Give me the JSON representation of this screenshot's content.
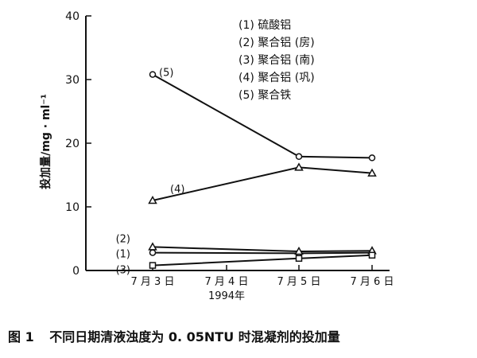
{
  "chart_data": {
    "type": "line",
    "ylabel": "投加量/mg · ml⁻¹",
    "ylim": [
      0,
      40
    ],
    "yticks": [
      0,
      10,
      20,
      30,
      40
    ],
    "x": [
      3,
      4,
      5,
      6
    ],
    "xticklabels": [
      "7 月 3 日",
      "7 月 4 日",
      "7 月 5 日",
      "7 月 6 日"
    ],
    "xsublabel": "1994年",
    "grid": false,
    "legend_position": "top-right",
    "series": [
      {
        "name": "(1) 硫酸铝",
        "tag": "(1)",
        "marker": "circle",
        "x": [
          3,
          5,
          6
        ],
        "values": [
          2.8,
          2.7,
          2.8
        ]
      },
      {
        "name": "(2) 聚合铝 (房)",
        "tag": "(2)",
        "marker": "triangle",
        "x": [
          3,
          5,
          6
        ],
        "values": [
          3.7,
          3.0,
          3.1
        ]
      },
      {
        "name": "(3) 聚合铝 (南)",
        "tag": "(3)",
        "marker": "square",
        "x": [
          3,
          5,
          6
        ],
        "values": [
          0.8,
          1.9,
          2.4
        ]
      },
      {
        "name": "(4) 聚合铝 (巩)",
        "tag": "(4)",
        "marker": "triangle",
        "x": [
          3,
          5,
          6
        ],
        "values": [
          11.0,
          16.2,
          15.3
        ]
      },
      {
        "name": "(5) 聚合铁",
        "tag": "(5)",
        "marker": "circle",
        "x": [
          3,
          5,
          6
        ],
        "values": [
          30.8,
          17.9,
          17.7
        ]
      }
    ]
  },
  "caption": {
    "number": "图 1",
    "text": "不同日期清液浊度为 0. 05NTU 时混凝剂的投加量"
  }
}
